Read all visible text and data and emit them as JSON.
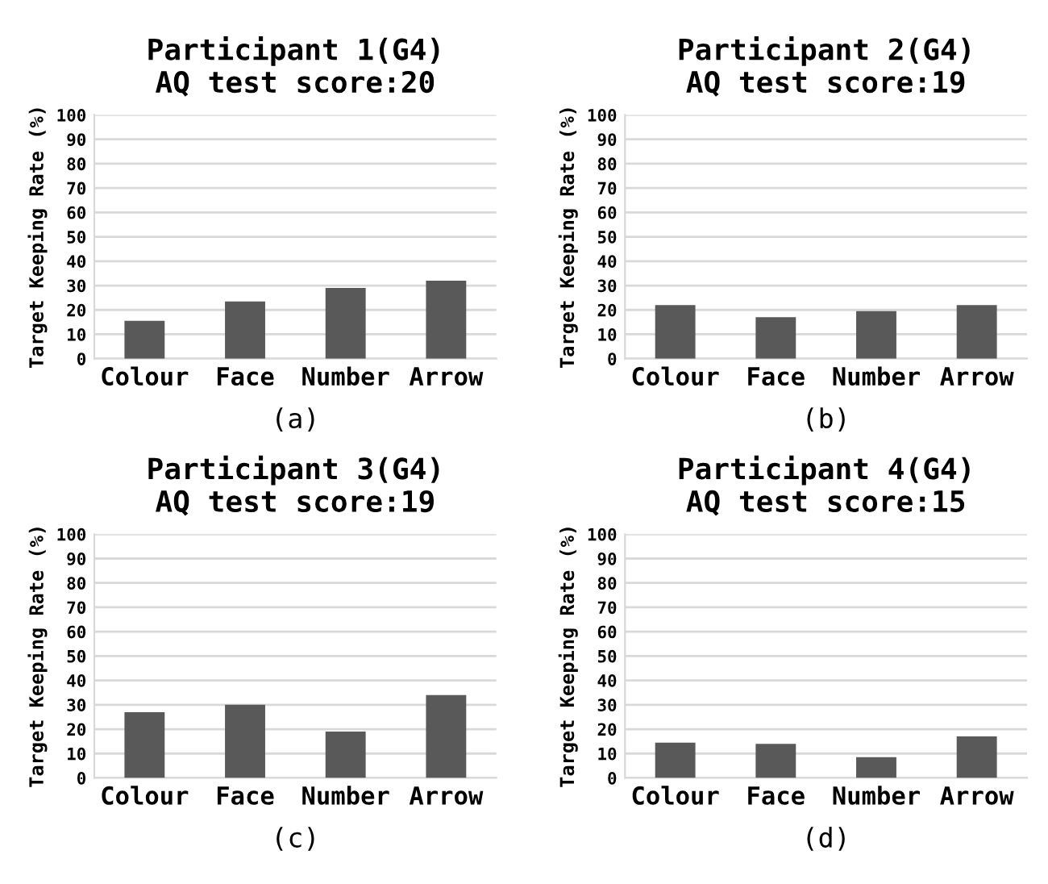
{
  "chart_data": [
    {
      "type": "bar",
      "title": "Participant 1(G4)\nAQ test score:20",
      "ylabel": "Target Keeping Rate (%)",
      "categories": [
        "Colour",
        "Face",
        "Number",
        "Arrow"
      ],
      "values": [
        15.5,
        23.5,
        29,
        32
      ],
      "color": "#595959",
      "ylim": [
        0,
        100
      ],
      "yticks": [
        0,
        10,
        20,
        30,
        40,
        50,
        60,
        70,
        80,
        90,
        100
      ],
      "grid": "y",
      "annotations": [
        "(a)"
      ]
    },
    {
      "type": "bar",
      "title": "Participant 2(G4)\nAQ test score:19",
      "ylabel": "Target Keeping Rate (%)",
      "categories": [
        "Colour",
        "Face",
        "Number",
        "Arrow"
      ],
      "values": [
        22,
        17,
        19.5,
        22
      ],
      "color": "#595959",
      "ylim": [
        0,
        100
      ],
      "yticks": [
        0,
        10,
        20,
        30,
        40,
        50,
        60,
        70,
        80,
        90,
        100
      ],
      "grid": "y",
      "annotations": [
        "(b)"
      ]
    },
    {
      "type": "bar",
      "title": "Participant 3(G4)\nAQ test score:19",
      "ylabel": "Target Keeping Rate (%)",
      "categories": [
        "Colour",
        "Face",
        "Number",
        "Arrow"
      ],
      "values": [
        27,
        30,
        19,
        34
      ],
      "color": "#595959",
      "ylim": [
        0,
        100
      ],
      "yticks": [
        0,
        10,
        20,
        30,
        40,
        50,
        60,
        70,
        80,
        90,
        100
      ],
      "grid": "y",
      "annotations": [
        "(c)"
      ]
    },
    {
      "type": "bar",
      "title": "Participant 4(G4)\nAQ test score:15",
      "ylabel": "Target Keeping Rate (%)",
      "categories": [
        "Colour",
        "Face",
        "Number",
        "Arrow"
      ],
      "values": [
        14.5,
        14,
        8.5,
        17
      ],
      "color": "#595959",
      "ylim": [
        0,
        100
      ],
      "yticks": [
        0,
        10,
        20,
        30,
        40,
        50,
        60,
        70,
        80,
        90,
        100
      ],
      "grid": "y",
      "annotations": [
        "(d)"
      ]
    }
  ]
}
